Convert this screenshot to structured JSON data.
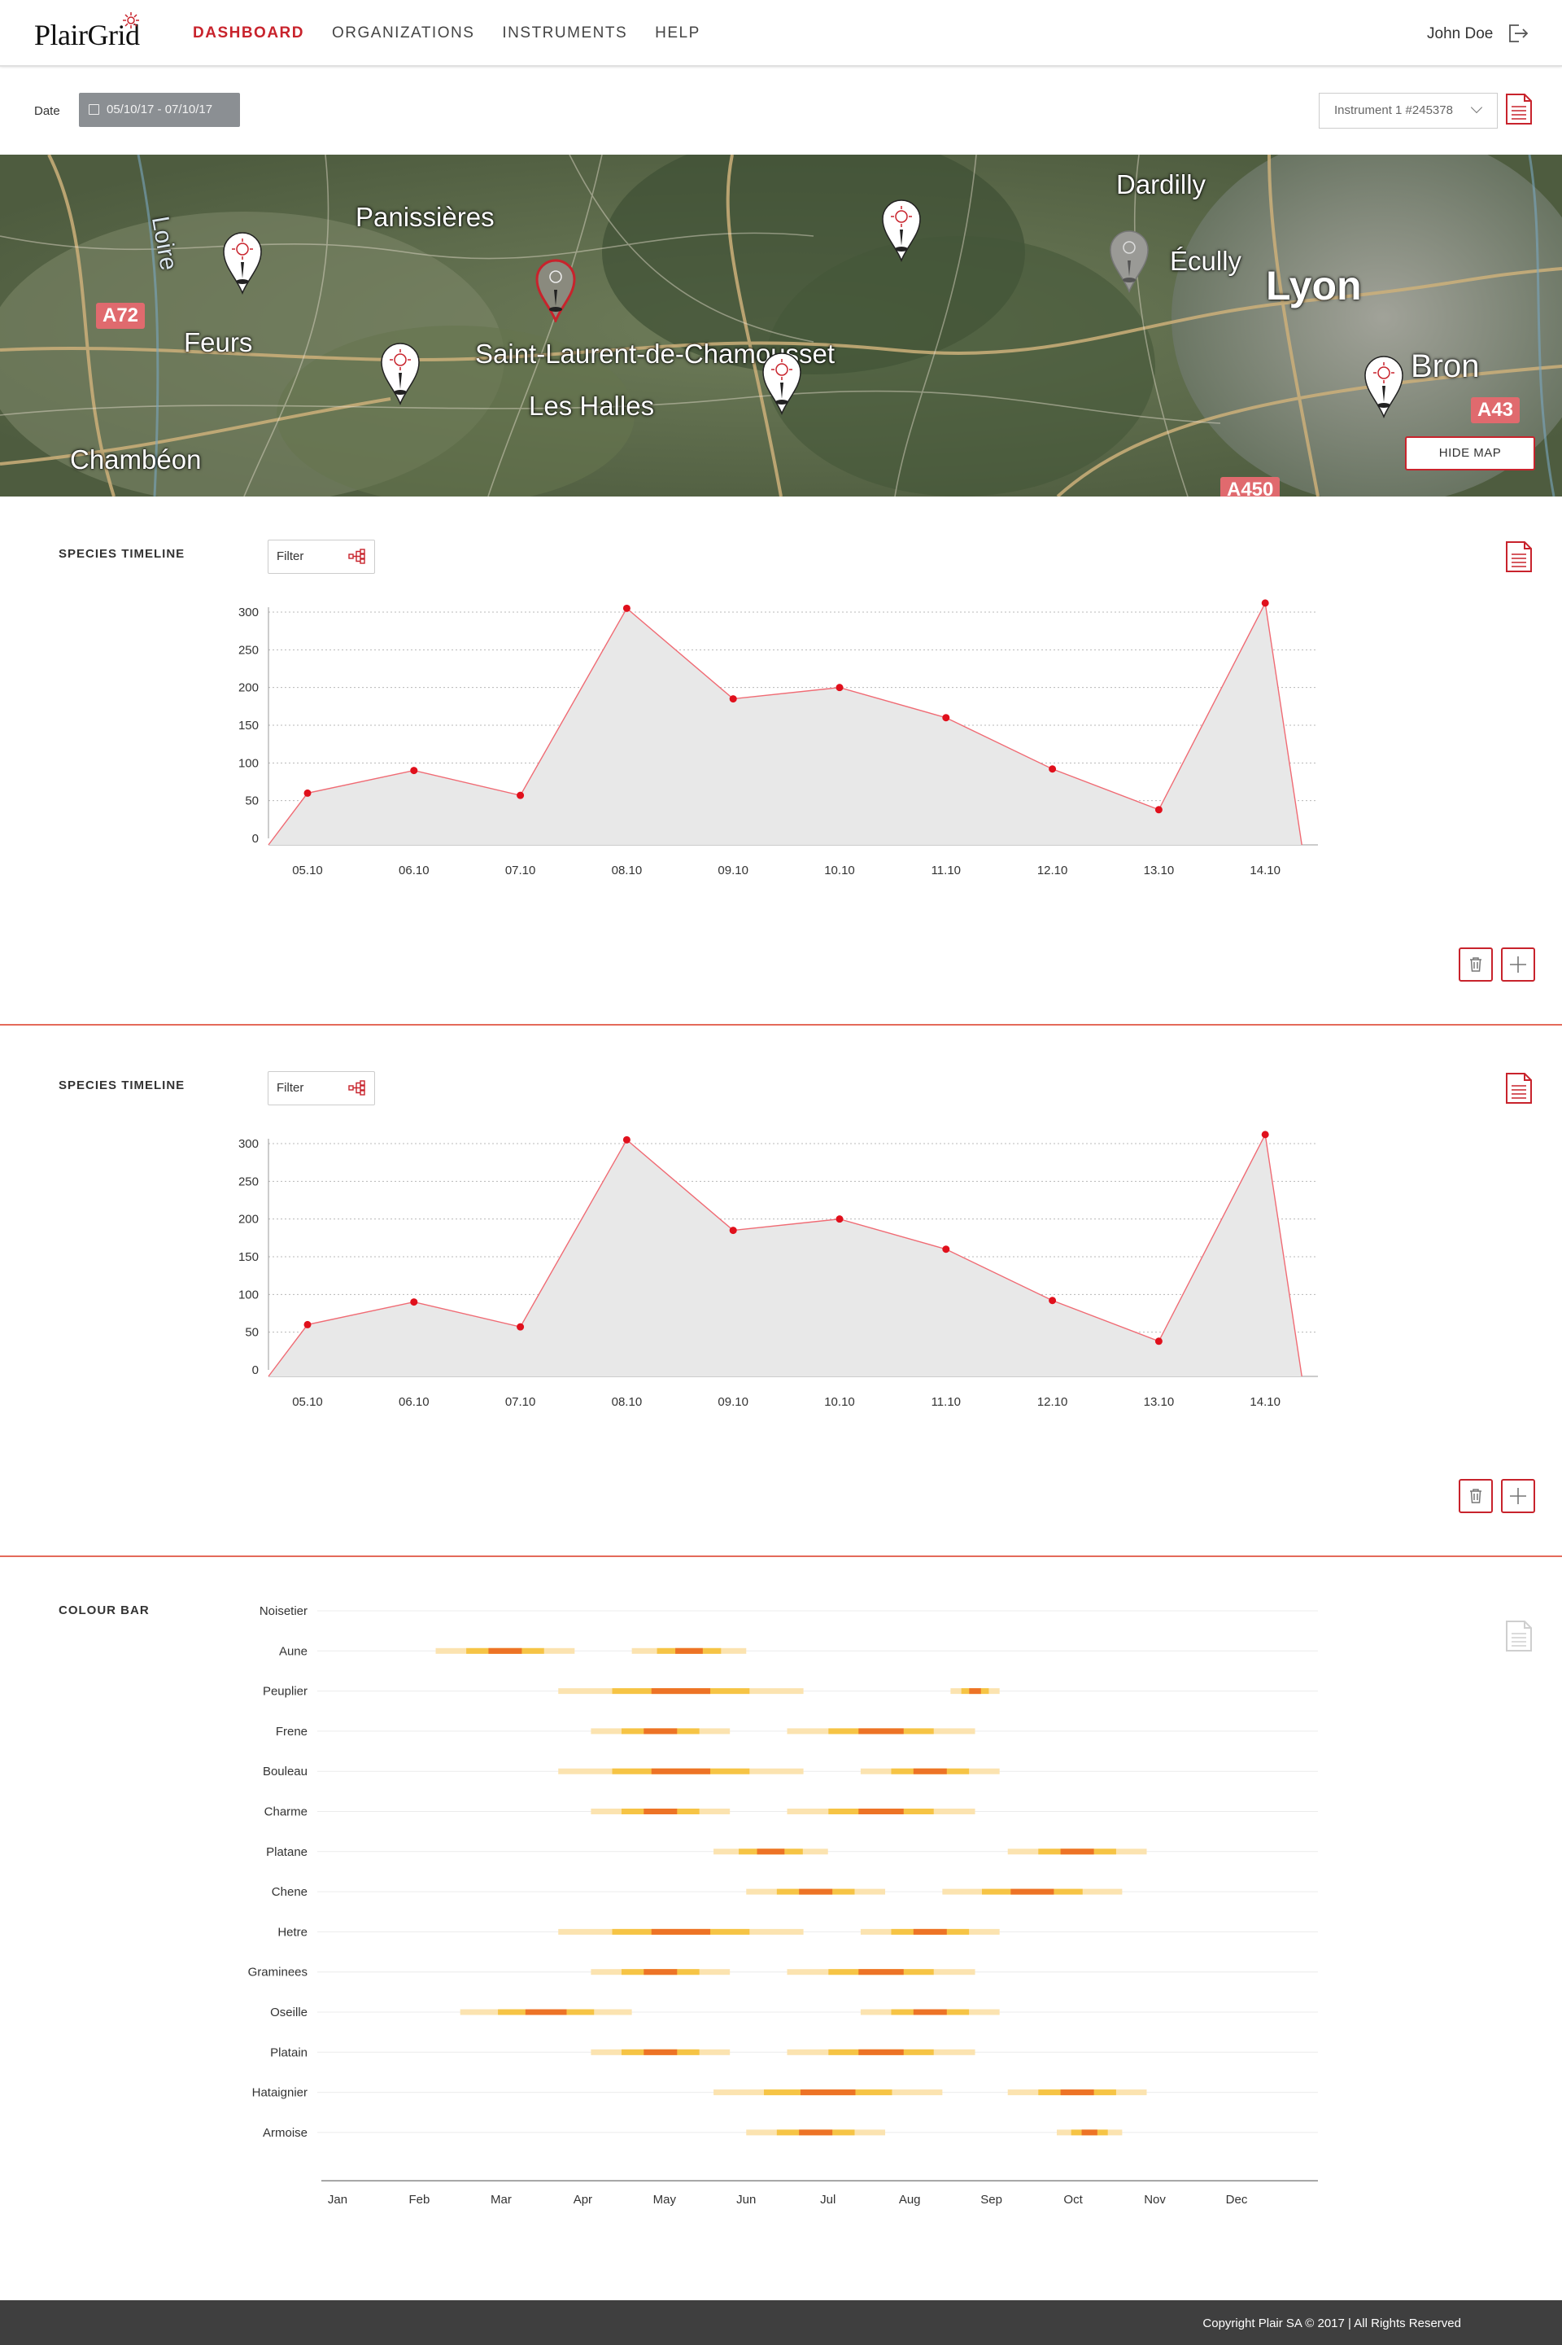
{
  "header": {
    "logo": "PlairGrid",
    "nav": [
      {
        "label": "DASHBOARD",
        "active": true
      },
      {
        "label": "ORGANIZATIONS",
        "active": false
      },
      {
        "label": "INSTRUMENTS",
        "active": false
      },
      {
        "label": "HELP",
        "active": false
      }
    ],
    "user": "John Doe",
    "logout_icon": "logout-icon"
  },
  "filters": {
    "date_label": "Date",
    "date_range": "05/10/17 - 07/10/17",
    "instrument": "Instrument 1 #245378"
  },
  "map": {
    "labels": [
      "Panissières",
      "Dardilly",
      "Écully",
      "Lyon",
      "Feurs",
      "Saint-Laurent-de-Chamousset",
      "Les Halles",
      "Bron",
      "Chambéon",
      "Loire"
    ],
    "road_badges": [
      "A72",
      "A43",
      "A450"
    ],
    "hide_map_label": "HIDE MAP"
  },
  "timeline1": {
    "title": "SPECIES TIMELINE",
    "filter_label": "Filter"
  },
  "timeline2": {
    "title": "SPECIES TIMELINE",
    "filter_label": "Filter"
  },
  "colour_bar": {
    "title": "COLOUR BAR"
  },
  "colors": {
    "accent": "#c8232c",
    "line": "#f06b74",
    "area": "#e8e8e8",
    "band_light": "#fbe3b0",
    "band_mid": "#f6c445",
    "band_dark": "#ed7326"
  },
  "chart_data": [
    {
      "type": "area",
      "title": "SPECIES TIMELINE",
      "categories": [
        "05.10",
        "06.10",
        "07.10",
        "08.10",
        "09.10",
        "10.10",
        "11.10",
        "12.10",
        "13.10",
        "14.10"
      ],
      "values": [
        60,
        90,
        57,
        305,
        185,
        200,
        160,
        92,
        38,
        312
      ],
      "ylim": [
        0,
        300
      ],
      "yticks": [
        0,
        50,
        100,
        150,
        200,
        250,
        300
      ],
      "grid": true
    },
    {
      "type": "area",
      "title": "SPECIES TIMELINE",
      "categories": [
        "05.10",
        "06.10",
        "07.10",
        "08.10",
        "09.10",
        "10.10",
        "11.10",
        "12.10",
        "13.10",
        "14.10"
      ],
      "values": [
        60,
        90,
        57,
        305,
        185,
        200,
        160,
        92,
        38,
        312
      ],
      "ylim": [
        0,
        300
      ],
      "yticks": [
        0,
        50,
        100,
        150,
        200,
        250,
        300
      ],
      "grid": true
    },
    {
      "type": "heatmap",
      "title": "COLOUR BAR",
      "months": [
        "Jan",
        "Feb",
        "Mar",
        "Apr",
        "May",
        "Jun",
        "Jul",
        "Aug",
        "Sep",
        "Oct",
        "Nov",
        "Dec"
      ],
      "species": [
        {
          "name": "Noisetier",
          "periods": []
        },
        {
          "name": "Aune",
          "periods": [
            [
              1.2,
              2.9
            ],
            [
              3.6,
              5.0
            ]
          ]
        },
        {
          "name": "Peuplier",
          "periods": [
            [
              2.7,
              5.7
            ],
            [
              7.5,
              8.1
            ]
          ]
        },
        {
          "name": "Frene",
          "periods": [
            [
              3.1,
              4.8
            ],
            [
              5.5,
              7.8
            ]
          ]
        },
        {
          "name": "Bouleau",
          "periods": [
            [
              2.7,
              5.7
            ],
            [
              6.4,
              8.1
            ]
          ]
        },
        {
          "name": "Charme",
          "periods": [
            [
              3.1,
              4.8
            ],
            [
              5.5,
              7.8
            ]
          ]
        },
        {
          "name": "Platane",
          "periods": [
            [
              4.6,
              6.0
            ],
            [
              8.2,
              9.9
            ]
          ]
        },
        {
          "name": "Chene",
          "periods": [
            [
              5.0,
              6.7
            ],
            [
              7.4,
              9.6
            ]
          ]
        },
        {
          "name": "Hetre",
          "periods": [
            [
              2.7,
              5.7
            ],
            [
              6.4,
              8.1
            ]
          ]
        },
        {
          "name": "Graminees",
          "periods": [
            [
              3.1,
              4.8
            ],
            [
              5.5,
              7.8
            ]
          ]
        },
        {
          "name": "Oseille",
          "periods": [
            [
              1.5,
              3.6
            ],
            [
              6.4,
              8.1
            ]
          ]
        },
        {
          "name": "Platain",
          "periods": [
            [
              3.1,
              4.8
            ],
            [
              5.5,
              7.8
            ]
          ]
        },
        {
          "name": "Hataignier",
          "periods": [
            [
              4.6,
              7.4
            ],
            [
              8.2,
              9.9
            ]
          ]
        },
        {
          "name": "Armoise",
          "periods": [
            [
              5.0,
              6.7
            ],
            [
              8.8,
              9.6
            ]
          ]
        }
      ]
    }
  ],
  "footer": {
    "copyright": "Copyright Plair SA © 2017 | All Rights Reserved"
  }
}
